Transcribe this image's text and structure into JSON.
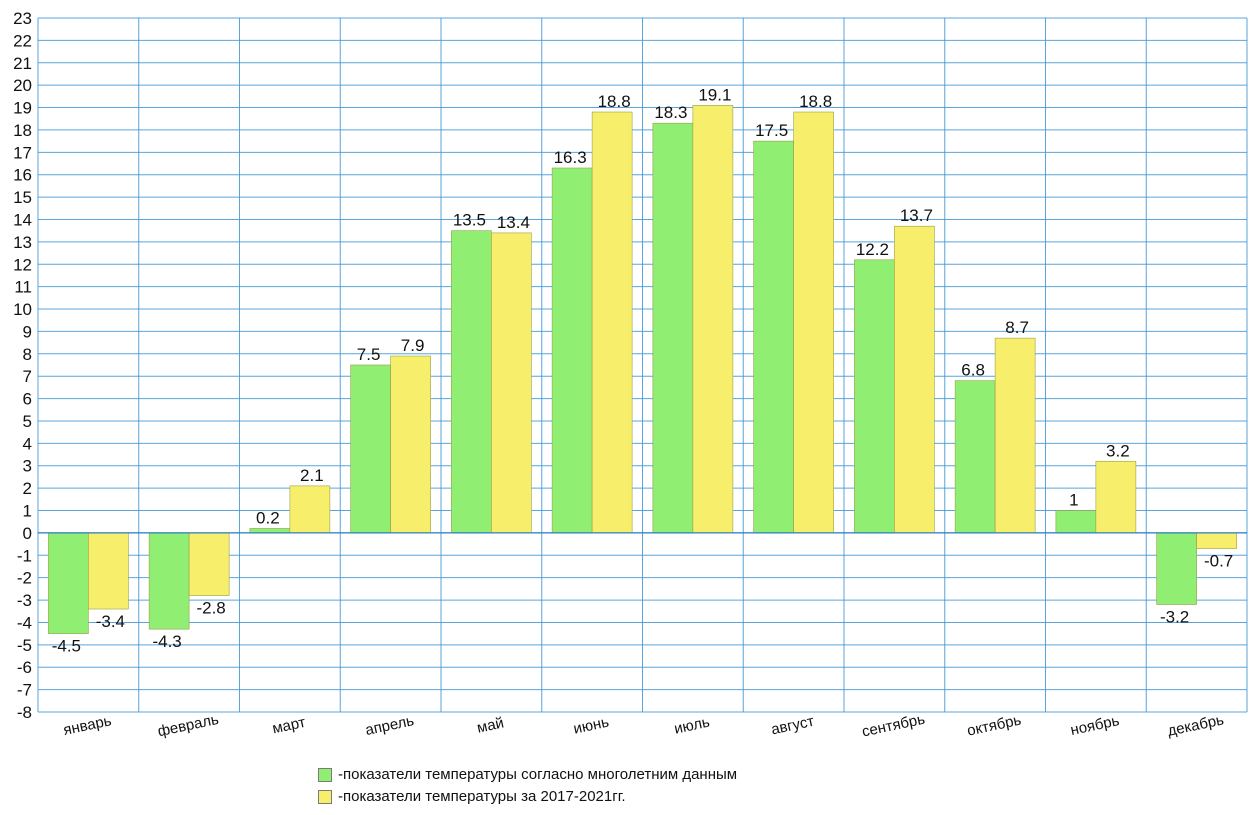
{
  "chart_data": {
    "type": "bar",
    "categories": [
      "январь",
      "февраль",
      "март",
      "апрель",
      "май",
      "июнь",
      "июль",
      "август",
      "сентябрь",
      "октябрь",
      "ноябрь",
      "декабрь"
    ],
    "series": [
      {
        "name": "-показатели температуры согласно многолетним данным",
        "color": "#90ee73",
        "values": [
          -4.5,
          -4.3,
          0.2,
          7.5,
          13.5,
          16.3,
          18.3,
          17.5,
          12.2,
          6.8,
          1,
          -3.2
        ],
        "labels": [
          "-4.5",
          "-4.3",
          "0.2",
          "7.5",
          "13.5",
          "16.3",
          "18.3",
          "17.5",
          "12.2",
          "6.8",
          "1",
          "-3.2"
        ]
      },
      {
        "name": "-показатели температуры за 2017-2021гг.",
        "color": "#f7ef6b",
        "values": [
          -3.4,
          -2.8,
          2.1,
          7.9,
          13.4,
          18.8,
          19.1,
          18.8,
          13.7,
          8.7,
          3.2,
          -0.7
        ],
        "labels": [
          "-3.4",
          "-2.8",
          "2.1",
          "7.9",
          "13.4",
          "18.8",
          "19.1",
          "18.8",
          "13.7",
          "8.7",
          "3.2",
          "-0.7"
        ]
      }
    ],
    "ylim": [
      -8,
      23
    ],
    "yticks": [
      "-8",
      "-7",
      "-6",
      "-5",
      "-4",
      "-3",
      "-2",
      "-1",
      "0",
      "1",
      "2",
      "3",
      "4",
      "5",
      "6",
      "7",
      "8",
      "9",
      "10",
      "11",
      "12",
      "13",
      "14",
      "15",
      "16",
      "17",
      "18",
      "19",
      "20",
      "21",
      "22",
      "23"
    ],
    "grid": true,
    "legend": "bottom",
    "title": "",
    "xlabel": "",
    "ylabel": "",
    "gridColor": "#3d96d6"
  }
}
